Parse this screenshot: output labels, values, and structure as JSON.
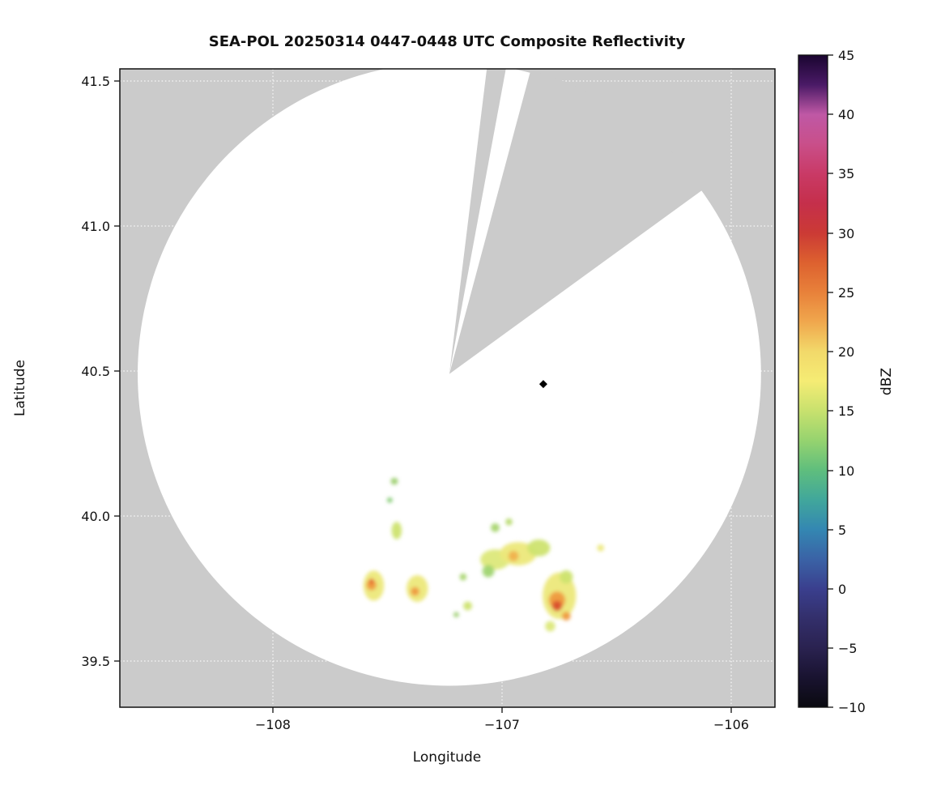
{
  "chart_data": {
    "type": "heatmap",
    "title": "SEA-POL 20250314 0447-0448 UTC Composite Reflectivity",
    "xlabel": "Longitude",
    "ylabel": "Latitude",
    "x_ticks": [
      "−108",
      "−107",
      "−106"
    ],
    "y_ticks": [
      "41.5",
      "41.0",
      "40.5",
      "40.0",
      "39.5"
    ],
    "xlim": [
      -108.67,
      -105.81
    ],
    "ylim": [
      39.34,
      41.54
    ],
    "grid": true,
    "background_color": "#cbcbcb",
    "coverage_fill": "#ffffff",
    "colorbar": {
      "label": "dBZ",
      "min": -10,
      "max": 45,
      "tick_step": 5,
      "ticks": [
        "45",
        "40",
        "35",
        "30",
        "25",
        "20",
        "15",
        "10",
        "5",
        "0",
        "−5",
        "−10"
      ],
      "colors_top_to_bottom": [
        "#1a0530",
        "#4a1a66",
        "#bf58a5",
        "#c94f8a",
        "#c93a66",
        "#c52f4b",
        "#cb3a35",
        "#dd612f",
        "#e8813a",
        "#f0a74d",
        "#f2d96a",
        "#f5ec74",
        "#c8e16e",
        "#96d36f",
        "#5fbe7d",
        "#41a79b",
        "#3487b2",
        "#3a63a6",
        "#3a3f8e",
        "#332f6b",
        "#2a2250",
        "#191330",
        "#0a0a10"
      ]
    },
    "radar": {
      "name": "SEA-POL",
      "center_lon": -107.23,
      "center_lat": 40.49,
      "coverage_radius_deg_lon": 1.36,
      "blocked_sectors_azimuth_deg": [
        [
          7,
          10.5
        ],
        [
          15,
          54
        ]
      ],
      "marker": {
        "lon": -106.82,
        "lat": 40.455,
        "symbol": "diamond",
        "color": "#000000"
      }
    },
    "echo_cells": [
      {
        "lon": -107.47,
        "lat": 40.12,
        "rx_deg": 0.016,
        "ry_deg": 0.012,
        "color": "#9ccf6f",
        "dbz": 12
      },
      {
        "lon": -107.49,
        "lat": 40.055,
        "rx_deg": 0.012,
        "ry_deg": 0.009,
        "color": "#7fc96f",
        "dbz": 10
      },
      {
        "lon": -107.46,
        "lat": 39.95,
        "rx_deg": 0.022,
        "ry_deg": 0.03,
        "color": "#cde36f",
        "dbz": 15
      },
      {
        "lon": -107.56,
        "lat": 39.76,
        "rx_deg": 0.045,
        "ry_deg": 0.052,
        "color": "#ece87a",
        "dbz": 18
      },
      {
        "lon": -107.57,
        "lat": 39.762,
        "rx_deg": 0.022,
        "ry_deg": 0.018,
        "color": "#ef9a3f",
        "dbz": 25
      },
      {
        "lon": -107.57,
        "lat": 39.775,
        "rx_deg": 0.011,
        "ry_deg": 0.009,
        "color": "#e2572b",
        "dbz": 29
      },
      {
        "lon": -107.37,
        "lat": 39.75,
        "rx_deg": 0.047,
        "ry_deg": 0.046,
        "color": "#ece87a",
        "dbz": 18
      },
      {
        "lon": -107.38,
        "lat": 39.74,
        "rx_deg": 0.019,
        "ry_deg": 0.015,
        "color": "#ef9a3f",
        "dbz": 24
      },
      {
        "lon": -107.17,
        "lat": 39.79,
        "rx_deg": 0.015,
        "ry_deg": 0.012,
        "color": "#a8d56f",
        "dbz": 13
      },
      {
        "lon": -107.15,
        "lat": 39.69,
        "rx_deg": 0.019,
        "ry_deg": 0.015,
        "color": "#cde36f",
        "dbz": 15
      },
      {
        "lon": -107.03,
        "lat": 39.85,
        "rx_deg": 0.065,
        "ry_deg": 0.035,
        "color": "#dce87a",
        "dbz": 16
      },
      {
        "lon": -106.93,
        "lat": 39.87,
        "rx_deg": 0.08,
        "ry_deg": 0.04,
        "color": "#ece87a",
        "dbz": 18
      },
      {
        "lon": -106.95,
        "lat": 39.862,
        "rx_deg": 0.022,
        "ry_deg": 0.018,
        "color": "#f0b14e",
        "dbz": 23
      },
      {
        "lon": -106.84,
        "lat": 39.89,
        "rx_deg": 0.05,
        "ry_deg": 0.029,
        "color": "#cde36f",
        "dbz": 15
      },
      {
        "lon": -107.06,
        "lat": 39.81,
        "rx_deg": 0.026,
        "ry_deg": 0.021,
        "color": "#9fd46f",
        "dbz": 12
      },
      {
        "lon": -107.03,
        "lat": 39.96,
        "rx_deg": 0.019,
        "ry_deg": 0.015,
        "color": "#a8d56f",
        "dbz": 13
      },
      {
        "lon": -106.97,
        "lat": 39.98,
        "rx_deg": 0.015,
        "ry_deg": 0.012,
        "color": "#b7da6e",
        "dbz": 13
      },
      {
        "lon": -106.75,
        "lat": 39.725,
        "rx_deg": 0.073,
        "ry_deg": 0.08,
        "color": "#ece87a",
        "dbz": 18
      },
      {
        "lon": -106.76,
        "lat": 39.71,
        "rx_deg": 0.036,
        "ry_deg": 0.03,
        "color": "#ef9a3f",
        "dbz": 25
      },
      {
        "lon": -106.76,
        "lat": 39.69,
        "rx_deg": 0.022,
        "ry_deg": 0.018,
        "color": "#d94f2e",
        "dbz": 29
      },
      {
        "lon": -106.72,
        "lat": 39.655,
        "rx_deg": 0.019,
        "ry_deg": 0.015,
        "color": "#ef9a3f",
        "dbz": 24
      },
      {
        "lon": -106.72,
        "lat": 39.79,
        "rx_deg": 0.029,
        "ry_deg": 0.023,
        "color": "#cde36f",
        "dbz": 15
      },
      {
        "lon": -106.79,
        "lat": 39.62,
        "rx_deg": 0.022,
        "ry_deg": 0.018,
        "color": "#dce87a",
        "dbz": 16
      },
      {
        "lon": -106.57,
        "lat": 39.89,
        "rx_deg": 0.015,
        "ry_deg": 0.012,
        "color": "#ece87a",
        "dbz": 17
      },
      {
        "lon": -107.2,
        "lat": 39.66,
        "rx_deg": 0.012,
        "ry_deg": 0.009,
        "color": "#9ccf6f",
        "dbz": 12
      }
    ]
  }
}
